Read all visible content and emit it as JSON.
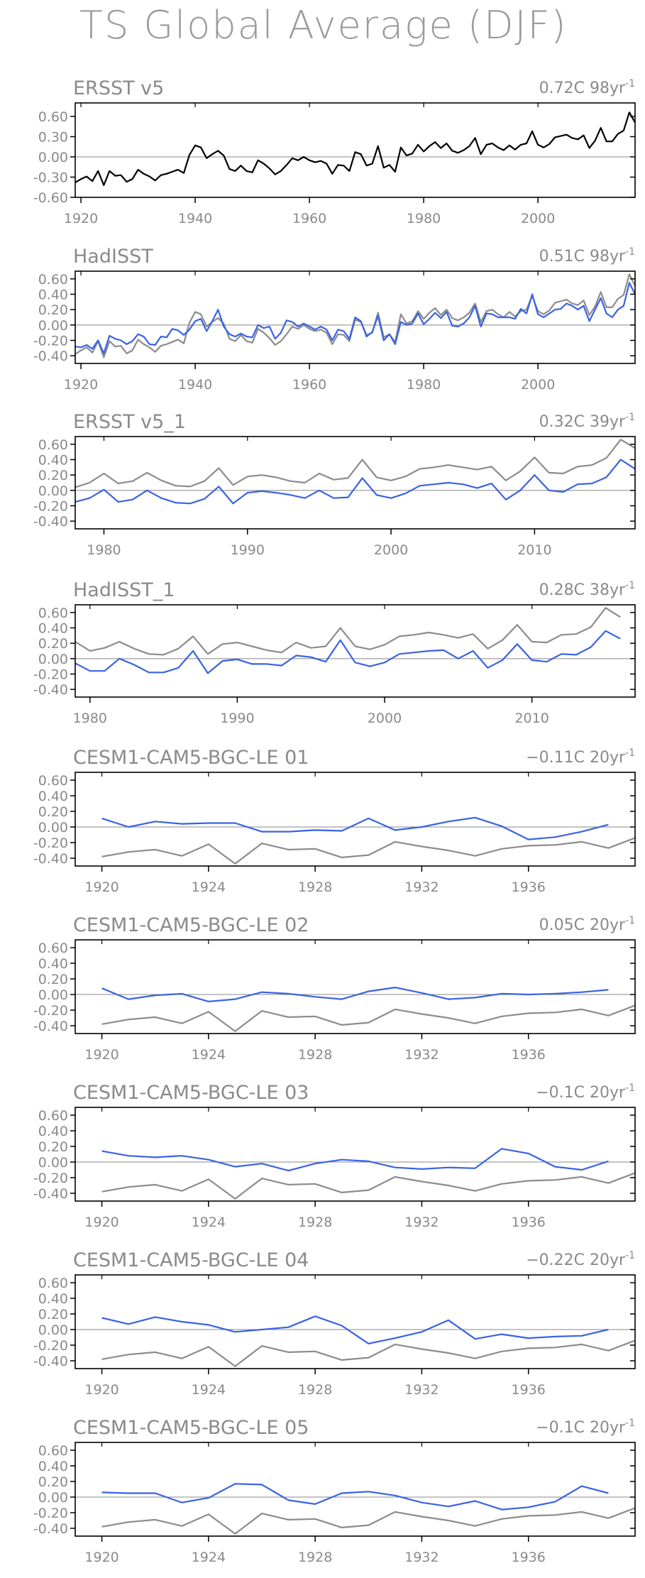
{
  "title": "TS Global Average (DJF)",
  "colors": {
    "obs": "#000000",
    "model": "#3a62e6",
    "reference": "#8c8c8c",
    "zero_line": "#888888",
    "frame": "#000000",
    "text": "#8a8a8a"
  },
  "chart_data": [
    {
      "type": "line",
      "title": "ERSST v5",
      "trend": "0.72C 98yr",
      "trend_exp": "-1",
      "xlim": [
        1919,
        2017
      ],
      "ylim": [
        -0.6,
        0.8
      ],
      "yticks": [
        -0.6,
        -0.3,
        0.0,
        0.3,
        0.6
      ],
      "ytick_labels": [
        "-0.60",
        "-0.30",
        "0.00",
        "0.30",
        "0.60"
      ],
      "xticks": [
        1920,
        1940,
        1960,
        1980,
        2000
      ],
      "series": [
        {
          "color": "#000000",
          "x_start": 1919,
          "values": [
            -0.38,
            -0.33,
            -0.29,
            -0.36,
            -0.21,
            -0.42,
            -0.21,
            -0.28,
            -0.27,
            -0.37,
            -0.33,
            -0.19,
            -0.25,
            -0.29,
            -0.35,
            -0.27,
            -0.25,
            -0.22,
            -0.19,
            -0.24,
            0.03,
            0.17,
            0.14,
            -0.02,
            0.04,
            0.09,
            0.02,
            -0.18,
            -0.21,
            -0.13,
            -0.21,
            -0.23,
            -0.05,
            -0.1,
            -0.17,
            -0.26,
            -0.21,
            -0.12,
            -0.02,
            -0.05,
            0.0,
            -0.05,
            -0.08,
            -0.06,
            -0.1,
            -0.25,
            -0.12,
            -0.13,
            -0.21,
            0.07,
            0.04,
            -0.13,
            -0.1,
            0.16,
            -0.16,
            -0.12,
            -0.22,
            0.14,
            0.02,
            0.05,
            0.18,
            0.08,
            0.16,
            0.22,
            0.13,
            0.2,
            0.09,
            0.06,
            0.1,
            0.16,
            0.28,
            0.04,
            0.18,
            0.2,
            0.14,
            0.1,
            0.17,
            0.11,
            0.18,
            0.2,
            0.38,
            0.18,
            0.14,
            0.19,
            0.29,
            0.31,
            0.33,
            0.28,
            0.26,
            0.32,
            0.13,
            0.24,
            0.43,
            0.23,
            0.23,
            0.34,
            0.39,
            0.66,
            0.51
          ]
        }
      ]
    },
    {
      "type": "line",
      "title": "HadISST",
      "trend": "0.51C 98yr",
      "trend_exp": "-1",
      "xlim": [
        1919,
        2017
      ],
      "ylim": [
        -0.5,
        0.7
      ],
      "yticks": [
        -0.4,
        -0.2,
        0.0,
        0.2,
        0.4,
        0.6
      ],
      "ytick_labels": [
        "-0.40",
        "-0.20",
        "0.00",
        "0.20",
        "0.40",
        "0.60"
      ],
      "xticks": [
        1920,
        1940,
        1960,
        1980,
        2000
      ],
      "series": [
        {
          "color": "#8c8c8c",
          "x_start": 1919,
          "values": [
            -0.38,
            -0.33,
            -0.29,
            -0.36,
            -0.21,
            -0.42,
            -0.21,
            -0.28,
            -0.27,
            -0.37,
            -0.33,
            -0.19,
            -0.25,
            -0.29,
            -0.35,
            -0.27,
            -0.25,
            -0.22,
            -0.19,
            -0.24,
            0.03,
            0.17,
            0.14,
            -0.02,
            0.04,
            0.09,
            0.02,
            -0.18,
            -0.21,
            -0.13,
            -0.21,
            -0.23,
            -0.05,
            -0.1,
            -0.17,
            -0.26,
            -0.21,
            -0.12,
            -0.02,
            -0.05,
            0.0,
            -0.05,
            -0.08,
            -0.06,
            -0.1,
            -0.25,
            -0.12,
            -0.13,
            -0.21,
            0.07,
            0.04,
            -0.13,
            -0.1,
            0.16,
            -0.16,
            -0.12,
            -0.22,
            0.14,
            0.02,
            0.05,
            0.18,
            0.08,
            0.16,
            0.22,
            0.13,
            0.2,
            0.09,
            0.06,
            0.1,
            0.16,
            0.28,
            0.04,
            0.18,
            0.2,
            0.14,
            0.1,
            0.17,
            0.11,
            0.18,
            0.2,
            0.38,
            0.18,
            0.14,
            0.19,
            0.29,
            0.31,
            0.33,
            0.28,
            0.26,
            0.32,
            0.13,
            0.24,
            0.43,
            0.23,
            0.23,
            0.34,
            0.39,
            0.66,
            0.51
          ]
        },
        {
          "color": "#3a62e6",
          "x_start": 1919,
          "values": [
            -0.28,
            -0.29,
            -0.26,
            -0.31,
            -0.2,
            -0.37,
            -0.14,
            -0.18,
            -0.2,
            -0.25,
            -0.21,
            -0.12,
            -0.15,
            -0.25,
            -0.26,
            -0.15,
            -0.16,
            -0.05,
            -0.07,
            -0.13,
            -0.06,
            0.05,
            0.08,
            -0.08,
            0.05,
            0.2,
            -0.02,
            -0.12,
            -0.15,
            -0.11,
            -0.15,
            -0.16,
            0.0,
            -0.04,
            -0.02,
            -0.18,
            -0.1,
            0.06,
            0.04,
            -0.02,
            0.02,
            -0.02,
            -0.06,
            -0.02,
            -0.06,
            -0.2,
            -0.06,
            -0.08,
            -0.18,
            0.1,
            0.05,
            -0.15,
            -0.09,
            0.12,
            -0.2,
            -0.12,
            -0.25,
            0.04,
            0.0,
            0.02,
            0.15,
            0.01,
            0.08,
            0.16,
            0.09,
            0.17,
            -0.01,
            -0.02,
            0.02,
            0.1,
            0.25,
            -0.02,
            0.15,
            0.14,
            0.1,
            0.1,
            0.1,
            0.08,
            0.21,
            0.15,
            0.4,
            0.14,
            0.1,
            0.15,
            0.2,
            0.21,
            0.28,
            0.25,
            0.2,
            0.25,
            0.05,
            0.2,
            0.35,
            0.15,
            0.1,
            0.2,
            0.25,
            0.55,
            0.4
          ]
        }
      ]
    },
    {
      "type": "line",
      "title": "ERSST v5_1",
      "trend": "0.32C 39yr",
      "trend_exp": "-1",
      "xlim": [
        1978,
        2017
      ],
      "ylim": [
        -0.5,
        0.7
      ],
      "yticks": [
        -0.4,
        -0.2,
        0.0,
        0.2,
        0.4,
        0.6
      ],
      "ytick_labels": [
        "-0.40",
        "-0.20",
        "0.00",
        "0.20",
        "0.40",
        "0.60"
      ],
      "xticks": [
        1980,
        1990,
        2000,
        2010
      ],
      "series": [
        {
          "color": "#8c8c8c",
          "x_start": 1978,
          "values": [
            0.04,
            0.1,
            0.22,
            0.09,
            0.12,
            0.23,
            0.13,
            0.06,
            0.05,
            0.12,
            0.29,
            0.07,
            0.18,
            0.2,
            0.17,
            0.12,
            0.1,
            0.22,
            0.14,
            0.16,
            0.4,
            0.17,
            0.13,
            0.18,
            0.28,
            0.3,
            0.33,
            0.3,
            0.27,
            0.31,
            0.13,
            0.25,
            0.43,
            0.23,
            0.22,
            0.31,
            0.33,
            0.42,
            0.66,
            0.55
          ]
        },
        {
          "color": "#3a62e6",
          "x_start": 1978,
          "values": [
            -0.15,
            -0.1,
            0.01,
            -0.15,
            -0.12,
            0.0,
            -0.1,
            -0.16,
            -0.17,
            -0.11,
            0.05,
            -0.17,
            -0.03,
            -0.01,
            -0.03,
            -0.06,
            -0.1,
            0.0,
            -0.1,
            -0.09,
            0.16,
            -0.06,
            -0.1,
            -0.04,
            0.06,
            0.08,
            0.1,
            0.08,
            0.03,
            0.09,
            -0.12,
            0.0,
            0.2,
            0.0,
            -0.02,
            0.08,
            0.09,
            0.17,
            0.4,
            0.28
          ]
        }
      ]
    },
    {
      "type": "line",
      "title": "HadISST_1",
      "trend": "0.28C 38yr",
      "trend_exp": "-1",
      "xlim": [
        1979,
        2017
      ],
      "ylim": [
        -0.5,
        0.7
      ],
      "yticks": [
        -0.4,
        -0.2,
        0.0,
        0.2,
        0.4,
        0.6
      ],
      "ytick_labels": [
        "-0.40",
        "-0.20",
        "0.00",
        "0.20",
        "0.40",
        "0.60"
      ],
      "xticks": [
        1980,
        1990,
        2000,
        2010
      ],
      "series": [
        {
          "color": "#8c8c8c",
          "x_start": 1979,
          "values": [
            0.22,
            0.1,
            0.14,
            0.22,
            0.13,
            0.06,
            0.05,
            0.13,
            0.29,
            0.06,
            0.19,
            0.21,
            0.16,
            0.11,
            0.08,
            0.21,
            0.14,
            0.16,
            0.4,
            0.16,
            0.12,
            0.18,
            0.29,
            0.31,
            0.34,
            0.31,
            0.27,
            0.32,
            0.13,
            0.24,
            0.44,
            0.22,
            0.21,
            0.31,
            0.32,
            0.41,
            0.66,
            0.54
          ]
        },
        {
          "color": "#3a62e6",
          "x_start": 1979,
          "values": [
            -0.06,
            -0.16,
            -0.16,
            0.0,
            -0.08,
            -0.18,
            -0.18,
            -0.12,
            0.1,
            -0.19,
            -0.03,
            -0.01,
            -0.07,
            -0.07,
            -0.09,
            0.04,
            0.02,
            -0.04,
            0.24,
            -0.05,
            -0.1,
            -0.05,
            0.06,
            0.08,
            0.1,
            0.11,
            0.0,
            0.1,
            -0.12,
            -0.02,
            0.19,
            -0.02,
            -0.04,
            0.06,
            0.05,
            0.15,
            0.36,
            0.26
          ]
        }
      ]
    },
    {
      "type": "line",
      "title": "CESM1-CAM5-BGC-LE 01",
      "trend": "−0.11C 20yr",
      "trend_exp": "-1",
      "xlim": [
        1919,
        1940
      ],
      "ylim": [
        -0.5,
        0.7
      ],
      "yticks": [
        -0.4,
        -0.2,
        0.0,
        0.2,
        0.4,
        0.6
      ],
      "ytick_labels": [
        "-0.40",
        "-0.20",
        "0.00",
        "0.20",
        "0.40",
        "0.60"
      ],
      "xticks": [
        1920,
        1924,
        1928,
        1932,
        1936
      ],
      "series": [
        {
          "color": "#8c8c8c",
          "x_start": 1920,
          "values": [
            -0.38,
            -0.32,
            -0.29,
            -0.37,
            -0.22,
            -0.47,
            -0.21,
            -0.29,
            -0.28,
            -0.39,
            -0.36,
            -0.19,
            -0.25,
            -0.3,
            -0.37,
            -0.28,
            -0.24,
            -0.23,
            -0.19,
            -0.27,
            -0.14
          ]
        },
        {
          "color": "#3a62e6",
          "x_start": 1920,
          "values": [
            0.11,
            0.0,
            0.07,
            0.04,
            0.05,
            0.05,
            -0.06,
            -0.06,
            -0.04,
            -0.05,
            0.11,
            -0.04,
            0.0,
            0.07,
            0.12,
            0.01,
            -0.16,
            -0.13,
            -0.06,
            0.03
          ]
        }
      ]
    },
    {
      "type": "line",
      "title": "CESM1-CAM5-BGC-LE 02",
      "trend": "0.05C 20yr",
      "trend_exp": "-1",
      "xlim": [
        1919,
        1940
      ],
      "ylim": [
        -0.5,
        0.7
      ],
      "yticks": [
        -0.4,
        -0.2,
        0.0,
        0.2,
        0.4,
        0.6
      ],
      "ytick_labels": [
        "-0.40",
        "-0.20",
        "0.00",
        "0.20",
        "0.40",
        "0.60"
      ],
      "xticks": [
        1920,
        1924,
        1928,
        1932,
        1936
      ],
      "series": [
        {
          "color": "#8c8c8c",
          "x_start": 1920,
          "values": [
            -0.38,
            -0.32,
            -0.29,
            -0.37,
            -0.22,
            -0.47,
            -0.21,
            -0.29,
            -0.28,
            -0.39,
            -0.36,
            -0.19,
            -0.25,
            -0.3,
            -0.37,
            -0.28,
            -0.24,
            -0.23,
            -0.19,
            -0.27,
            -0.14
          ]
        },
        {
          "color": "#3a62e6",
          "x_start": 1920,
          "values": [
            0.08,
            -0.06,
            -0.01,
            0.01,
            -0.09,
            -0.06,
            0.03,
            0.01,
            -0.03,
            -0.06,
            0.04,
            0.09,
            0.02,
            -0.06,
            -0.04,
            0.01,
            0.0,
            0.01,
            0.03,
            0.06
          ]
        }
      ]
    },
    {
      "type": "line",
      "title": "CESM1-CAM5-BGC-LE 03",
      "trend": "−0.1C 20yr",
      "trend_exp": "-1",
      "xlim": [
        1919,
        1940
      ],
      "ylim": [
        -0.5,
        0.7
      ],
      "yticks": [
        -0.4,
        -0.2,
        0.0,
        0.2,
        0.4,
        0.6
      ],
      "ytick_labels": [
        "-0.40",
        "-0.20",
        "0.00",
        "0.20",
        "0.40",
        "0.60"
      ],
      "xticks": [
        1920,
        1924,
        1928,
        1932,
        1936
      ],
      "series": [
        {
          "color": "#8c8c8c",
          "x_start": 1920,
          "values": [
            -0.38,
            -0.32,
            -0.29,
            -0.37,
            -0.22,
            -0.47,
            -0.21,
            -0.29,
            -0.28,
            -0.39,
            -0.36,
            -0.19,
            -0.25,
            -0.3,
            -0.37,
            -0.28,
            -0.24,
            -0.23,
            -0.19,
            -0.27,
            -0.14
          ]
        },
        {
          "color": "#3a62e6",
          "x_start": 1920,
          "values": [
            0.14,
            0.08,
            0.06,
            0.08,
            0.03,
            -0.06,
            -0.02,
            -0.11,
            -0.02,
            0.03,
            0.01,
            -0.07,
            -0.09,
            -0.07,
            -0.08,
            0.17,
            0.11,
            -0.06,
            -0.1,
            0.01
          ]
        }
      ]
    },
    {
      "type": "line",
      "title": "CESM1-CAM5-BGC-LE 04",
      "trend": "−0.22C 20yr",
      "trend_exp": "-1",
      "xlim": [
        1919,
        1940
      ],
      "ylim": [
        -0.5,
        0.7
      ],
      "yticks": [
        -0.4,
        -0.2,
        0.0,
        0.2,
        0.4,
        0.6
      ],
      "ytick_labels": [
        "-0.40",
        "-0.20",
        "0.00",
        "0.20",
        "0.40",
        "0.60"
      ],
      "xticks": [
        1920,
        1924,
        1928,
        1932,
        1936
      ],
      "series": [
        {
          "color": "#8c8c8c",
          "x_start": 1920,
          "values": [
            -0.38,
            -0.32,
            -0.29,
            -0.37,
            -0.22,
            -0.47,
            -0.21,
            -0.29,
            -0.28,
            -0.39,
            -0.36,
            -0.19,
            -0.25,
            -0.3,
            -0.37,
            -0.28,
            -0.24,
            -0.23,
            -0.19,
            -0.27,
            -0.14
          ]
        },
        {
          "color": "#3a62e6",
          "x_start": 1920,
          "values": [
            0.15,
            0.07,
            0.16,
            0.1,
            0.06,
            -0.03,
            0.0,
            0.03,
            0.17,
            0.05,
            -0.18,
            -0.11,
            -0.03,
            0.12,
            -0.12,
            -0.06,
            -0.11,
            -0.09,
            -0.08,
            0.0
          ]
        }
      ]
    },
    {
      "type": "line",
      "title": "CESM1-CAM5-BGC-LE 05",
      "trend": "−0.1C 20yr",
      "trend_exp": "-1",
      "xlim": [
        1919,
        1940
      ],
      "ylim": [
        -0.5,
        0.7
      ],
      "yticks": [
        -0.4,
        -0.2,
        0.0,
        0.2,
        0.4,
        0.6
      ],
      "ytick_labels": [
        "-0.40",
        "-0.20",
        "0.00",
        "0.20",
        "0.40",
        "0.60"
      ],
      "xticks": [
        1920,
        1924,
        1928,
        1932,
        1936
      ],
      "series": [
        {
          "color": "#8c8c8c",
          "x_start": 1920,
          "values": [
            -0.38,
            -0.32,
            -0.29,
            -0.37,
            -0.22,
            -0.47,
            -0.21,
            -0.29,
            -0.28,
            -0.39,
            -0.36,
            -0.19,
            -0.25,
            -0.3,
            -0.37,
            -0.28,
            -0.24,
            -0.23,
            -0.19,
            -0.27,
            -0.14
          ]
        },
        {
          "color": "#3a62e6",
          "x_start": 1920,
          "values": [
            0.06,
            0.05,
            0.05,
            -0.07,
            -0.01,
            0.17,
            0.16,
            -0.04,
            -0.09,
            0.05,
            0.07,
            0.02,
            -0.07,
            -0.12,
            -0.05,
            -0.16,
            -0.13,
            -0.06,
            0.14,
            0.05
          ]
        }
      ]
    }
  ]
}
